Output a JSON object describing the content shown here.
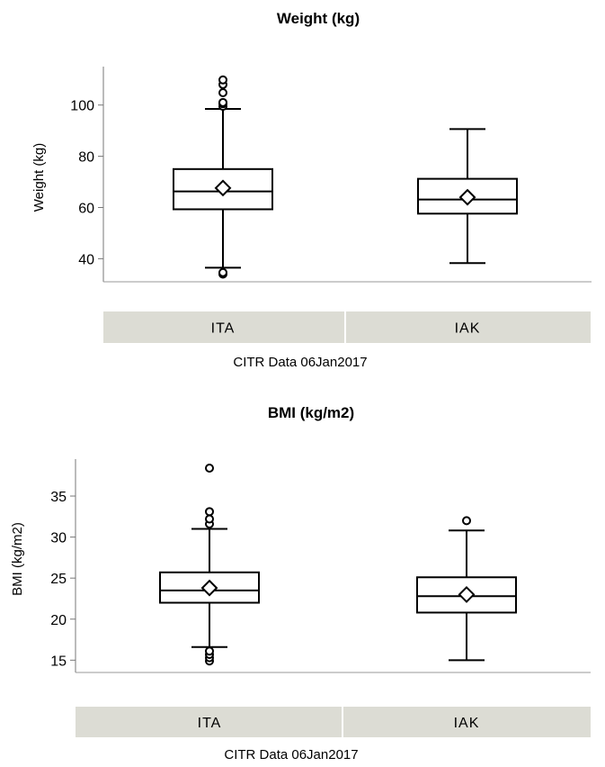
{
  "colors": {
    "box": "#000000",
    "category_band": "#dcdcd4",
    "band_border": "#ffffff"
  },
  "chart_data": [
    {
      "type": "box",
      "title": "Weight (kg)",
      "ylabel": "Weight (kg)",
      "ylim": [
        31,
        115
      ],
      "yticks": [
        40,
        60,
        80,
        100
      ],
      "category_label": "",
      "footnote": "CITR  Data 06Jan2017",
      "categories": [
        "ITA",
        "IAK"
      ],
      "boxes": [
        {
          "category": "ITA",
          "min": 36.5,
          "q1": 59.3,
          "median": 66.3,
          "q3": 75.0,
          "max": 98.5,
          "mean": 67.6,
          "outliers": [
            34.0,
            34.6,
            99.5,
            100.5,
            101.0,
            104.8,
            108.0,
            109.8
          ]
        },
        {
          "category": "IAK",
          "min": 38.3,
          "q1": 57.6,
          "median": 63.1,
          "q3": 71.2,
          "max": 90.6,
          "mean": 64.0,
          "outliers": []
        }
      ]
    },
    {
      "type": "box",
      "title": "BMI (kg/m2)",
      "ylabel": "BMI (kg/m2)",
      "ylim": [
        13.5,
        39.5
      ],
      "yticks": [
        15,
        20,
        25,
        30,
        35
      ],
      "category_label": "",
      "footnote": "CITR  Data 06Jan2017",
      "categories": [
        "ITA",
        "IAK"
      ],
      "boxes": [
        {
          "category": "ITA",
          "min": 16.6,
          "q1": 22.0,
          "median": 23.5,
          "q3": 25.7,
          "max": 31.0,
          "mean": 23.8,
          "outliers": [
            14.9,
            15.3,
            15.7,
            16.1,
            31.6,
            32.2,
            33.1,
            38.4
          ]
        },
        {
          "category": "IAK",
          "min": 15.0,
          "q1": 20.8,
          "median": 22.8,
          "q3": 25.1,
          "max": 30.8,
          "mean": 23.0,
          "outliers": [
            32.0
          ]
        }
      ]
    }
  ]
}
